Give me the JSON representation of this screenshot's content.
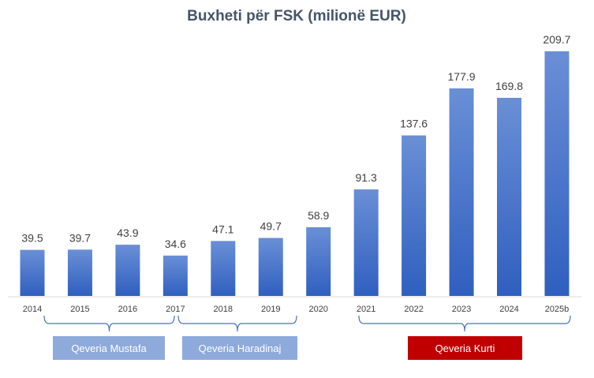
{
  "chart_data": {
    "type": "bar",
    "title": "Buxheti për FSK (milionë EUR)",
    "xlabel": "",
    "ylabel": "",
    "ylim": [
      0,
      210
    ],
    "grid": false,
    "categories": [
      "2014",
      "2015",
      "2016",
      "2017",
      "2018",
      "2019",
      "2020",
      "2021",
      "2022",
      "2023",
      "2024",
      "2025b"
    ],
    "values": [
      39.5,
      39.7,
      43.9,
      34.6,
      47.1,
      49.7,
      58.9,
      91.3,
      137.6,
      177.9,
      169.8,
      209.7
    ],
    "value_labels": [
      "39.5",
      "39.7",
      "43.9",
      "34.6",
      "47.1",
      "49.7",
      "58.9",
      "91.3",
      "137.6",
      "177.9",
      "169.8",
      "209.7"
    ],
    "bar_color_top": "#6a8fd6",
    "bar_color_bottom": "#2f5fbf",
    "annotations": [
      {
        "label": "Qeveria Mustafa",
        "from": "2014",
        "to": "2017",
        "color": "#8eaadb"
      },
      {
        "label": "Qeveria Haradinaj",
        "from": "2017",
        "to": "2019",
        "color": "#8eaadb"
      },
      {
        "label": "Qeveria Kurti",
        "from": "2021",
        "to": "2025b",
        "color": "#c00000"
      }
    ]
  }
}
